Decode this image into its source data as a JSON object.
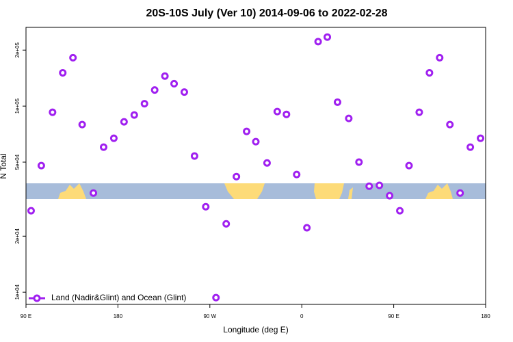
{
  "chart_data": {
    "type": "scatter",
    "title": "20S-10S July (Ver 10)   2014-09-06 to 2022-02-28",
    "xlabel": "Longitude (deg E)",
    "ylabel": "N Total",
    "log_y": true,
    "xlim": [
      90,
      540
    ],
    "ylim": [
      8600,
      265000
    ],
    "xticks": [
      {
        "value": 90,
        "label": "90 E"
      },
      180,
      {
        "value": 270,
        "label": "90 W"
      },
      {
        "value": 360,
        "label": "0"
      },
      {
        "value": 450,
        "label": "90 E"
      },
      {
        "value": 540,
        "label": "180"
      }
    ],
    "yticks": [
      {
        "value": 10000,
        "label": "1e+04"
      },
      {
        "value": 20000,
        "label": "2e+04"
      },
      {
        "value": 50000,
        "label": "5e+04"
      },
      {
        "value": 100000,
        "label": "1e+05"
      },
      {
        "value": 200000,
        "label": "2e+05"
      }
    ],
    "legend": "bottom-left",
    "series": [
      {
        "name": "Land (Nadir&Glint) and Ocean (Glint)",
        "color": "#a020f0",
        "x": [
          95,
          105,
          116,
          126,
          136,
          145,
          156,
          166,
          176,
          186,
          196,
          206,
          216,
          226,
          235,
          245,
          255,
          266,
          276,
          286,
          296,
          306,
          315,
          326,
          336,
          345,
          355,
          365,
          376,
          385,
          395,
          406,
          416,
          426,
          436,
          446,
          456,
          465,
          475,
          485,
          495,
          505,
          515,
          525,
          535
        ],
        "values": [
          27400,
          47900,
          92700,
          151000,
          182000,
          79600,
          34100,
          60200,
          67200,
          82300,
          89600,
          103000,
          122000,
          145000,
          132000,
          119000,
          53900,
          28800,
          9350,
          23300,
          41800,
          73100,
          64400,
          49500,
          93500,
          90300,
          42900,
          22200,
          222000,
          235000,
          105000,
          85900,
          50000,
          37100,
          37500,
          33000,
          27400,
          47900,
          92700,
          151000,
          182000,
          79600,
          34100,
          60200,
          67200
        ]
      }
    ]
  }
}
